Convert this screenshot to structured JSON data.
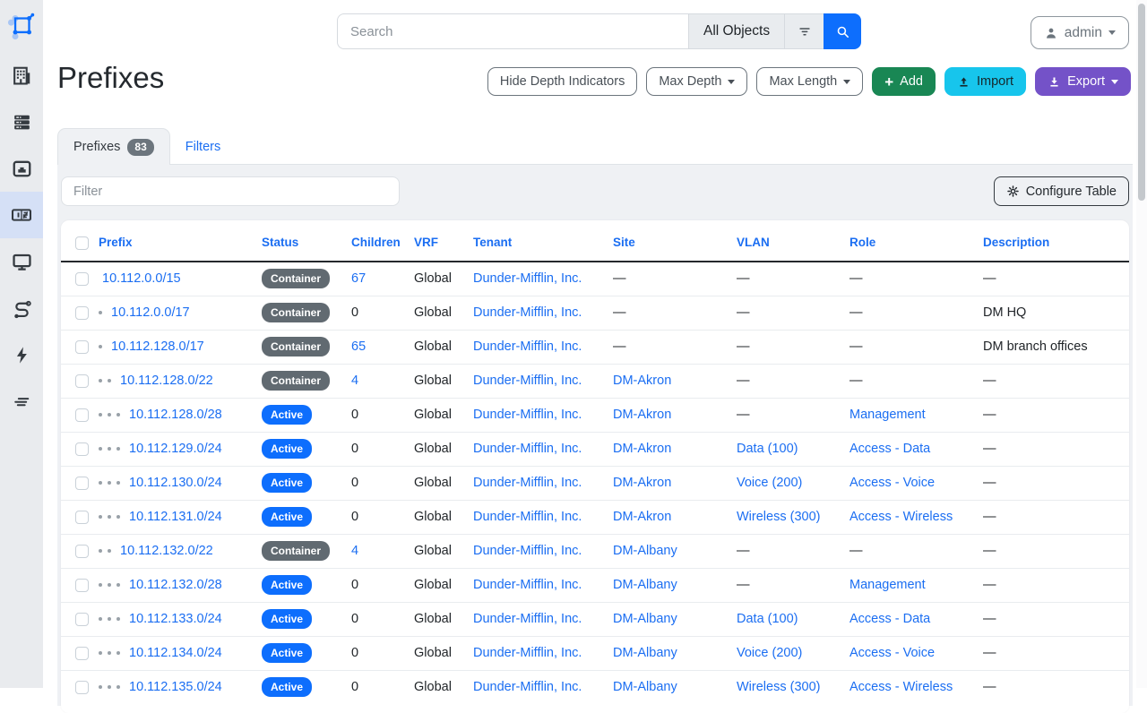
{
  "colors": {
    "link": "#1b6ef2",
    "status": {
      "Container": "#616a71",
      "Active": "#0d6efd"
    },
    "add_button": "#198754",
    "import_button": "#17c5ec",
    "export_button": "#7452c8",
    "sidebar_active": "#d5e0f6"
  },
  "sidebar": {
    "items": [
      {
        "icon": "organization-building-icon"
      },
      {
        "icon": "devices-server-icon"
      },
      {
        "icon": "connections-port-icon"
      },
      {
        "icon": "ipam-counter-icon",
        "active": true
      },
      {
        "icon": "virtualization-monitor-icon"
      },
      {
        "icon": "circuits-route-icon"
      },
      {
        "icon": "power-bolt-icon"
      },
      {
        "icon": "overlays-lines-icon"
      }
    ]
  },
  "search": {
    "placeholder": "Search",
    "scope_label": "All Objects"
  },
  "user": {
    "name": "admin"
  },
  "page": {
    "title": "Prefixes"
  },
  "actions": {
    "hide_depth": "Hide Depth Indicators",
    "max_depth": "Max Depth",
    "max_length": "Max Length",
    "add": "Add",
    "import": "Import",
    "export": "Export"
  },
  "tabs": {
    "prefixes_label": "Prefixes",
    "prefixes_count": 83,
    "filters_label": "Filters"
  },
  "toolbar": {
    "filter_placeholder": "Filter",
    "configure_table": "Configure Table"
  },
  "table": {
    "columns": [
      "Prefix",
      "Status",
      "Children",
      "VRF",
      "Tenant",
      "Site",
      "VLAN",
      "Role",
      "Description"
    ],
    "empty_value": "—",
    "rows": [
      {
        "depth": 0,
        "prefix": "10.112.0.0/15",
        "status": "Container",
        "children": "67",
        "vrf": "Global",
        "tenant": "Dunder-Mifflin, Inc.",
        "site": "—",
        "vlan": "—",
        "role": "—",
        "description": "—"
      },
      {
        "depth": 1,
        "prefix": "10.112.0.0/17",
        "status": "Container",
        "children": "0",
        "vrf": "Global",
        "tenant": "Dunder-Mifflin, Inc.",
        "site": "—",
        "vlan": "—",
        "role": "—",
        "description": "DM HQ"
      },
      {
        "depth": 1,
        "prefix": "10.112.128.0/17",
        "status": "Container",
        "children": "65",
        "vrf": "Global",
        "tenant": "Dunder-Mifflin, Inc.",
        "site": "—",
        "vlan": "—",
        "role": "—",
        "description": "DM branch offices"
      },
      {
        "depth": 2,
        "prefix": "10.112.128.0/22",
        "status": "Container",
        "children": "4",
        "vrf": "Global",
        "tenant": "Dunder-Mifflin, Inc.",
        "site": "DM-Akron",
        "vlan": "—",
        "role": "—",
        "description": "—"
      },
      {
        "depth": 3,
        "prefix": "10.112.128.0/28",
        "status": "Active",
        "children": "0",
        "vrf": "Global",
        "tenant": "Dunder-Mifflin, Inc.",
        "site": "DM-Akron",
        "vlan": "—",
        "role": "Management",
        "description": "—"
      },
      {
        "depth": 3,
        "prefix": "10.112.129.0/24",
        "status": "Active",
        "children": "0",
        "vrf": "Global",
        "tenant": "Dunder-Mifflin, Inc.",
        "site": "DM-Akron",
        "vlan": "Data (100)",
        "role": "Access - Data",
        "description": "—"
      },
      {
        "depth": 3,
        "prefix": "10.112.130.0/24",
        "status": "Active",
        "children": "0",
        "vrf": "Global",
        "tenant": "Dunder-Mifflin, Inc.",
        "site": "DM-Akron",
        "vlan": "Voice (200)",
        "role": "Access - Voice",
        "description": "—"
      },
      {
        "depth": 3,
        "prefix": "10.112.131.0/24",
        "status": "Active",
        "children": "0",
        "vrf": "Global",
        "tenant": "Dunder-Mifflin, Inc.",
        "site": "DM-Akron",
        "vlan": "Wireless (300)",
        "role": "Access - Wireless",
        "description": "—"
      },
      {
        "depth": 2,
        "prefix": "10.112.132.0/22",
        "status": "Container",
        "children": "4",
        "vrf": "Global",
        "tenant": "Dunder-Mifflin, Inc.",
        "site": "DM-Albany",
        "vlan": "—",
        "role": "—",
        "description": "—"
      },
      {
        "depth": 3,
        "prefix": "10.112.132.0/28",
        "status": "Active",
        "children": "0",
        "vrf": "Global",
        "tenant": "Dunder-Mifflin, Inc.",
        "site": "DM-Albany",
        "vlan": "—",
        "role": "Management",
        "description": "—"
      },
      {
        "depth": 3,
        "prefix": "10.112.133.0/24",
        "status": "Active",
        "children": "0",
        "vrf": "Global",
        "tenant": "Dunder-Mifflin, Inc.",
        "site": "DM-Albany",
        "vlan": "Data (100)",
        "role": "Access - Data",
        "description": "—"
      },
      {
        "depth": 3,
        "prefix": "10.112.134.0/24",
        "status": "Active",
        "children": "0",
        "vrf": "Global",
        "tenant": "Dunder-Mifflin, Inc.",
        "site": "DM-Albany",
        "vlan": "Voice (200)",
        "role": "Access - Voice",
        "description": "—"
      },
      {
        "depth": 3,
        "prefix": "10.112.135.0/24",
        "status": "Active",
        "children": "0",
        "vrf": "Global",
        "tenant": "Dunder-Mifflin, Inc.",
        "site": "DM-Albany",
        "vlan": "Wireless (300)",
        "role": "Access - Wireless",
        "description": "—"
      }
    ]
  }
}
